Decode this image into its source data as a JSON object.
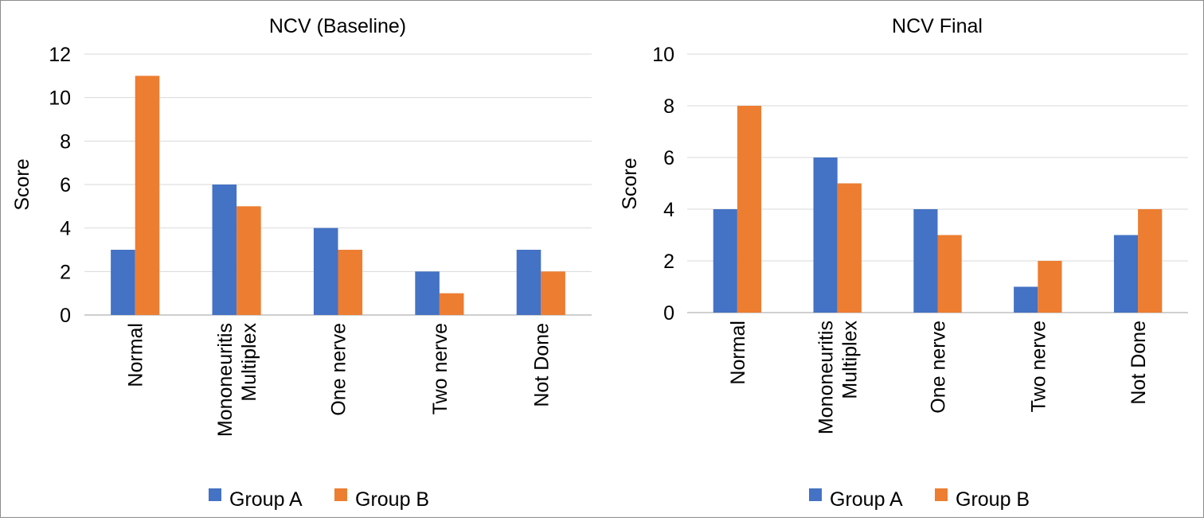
{
  "chart_data": [
    {
      "type": "bar",
      "title": "NCV (Baseline)",
      "xlabel": "",
      "ylabel": "Score",
      "ylim": [
        0,
        12
      ],
      "yticks": [
        0,
        2,
        4,
        6,
        8,
        10,
        12
      ],
      "grid": true,
      "legend": "bottom",
      "categories": [
        [
          "Normal"
        ],
        [
          "Mononeuritis",
          "Multiplex"
        ],
        [
          "One nerve"
        ],
        [
          "Two nerve"
        ],
        [
          "Not Done"
        ]
      ],
      "series": [
        {
          "name": "Group A",
          "color": "#4472c4",
          "values": [
            3,
            6,
            4,
            2,
            3
          ]
        },
        {
          "name": "Group B",
          "color": "#ed7d31",
          "values": [
            11,
            5,
            3,
            1,
            2
          ]
        }
      ]
    },
    {
      "type": "bar",
      "title": "NCV Final",
      "xlabel": "",
      "ylabel": "Score",
      "ylim": [
        0,
        10
      ],
      "yticks": [
        0,
        2,
        4,
        6,
        8,
        10
      ],
      "grid": true,
      "legend": "bottom",
      "categories": [
        [
          "Normal"
        ],
        [
          "Mononeuritis",
          "Multiplex"
        ],
        [
          "One nerve"
        ],
        [
          "Two nerve"
        ],
        [
          "Not Done"
        ]
      ],
      "series": [
        {
          "name": "Group A",
          "color": "#4472c4",
          "values": [
            4,
            6,
            4,
            1,
            3
          ]
        },
        {
          "name": "Group B",
          "color": "#ed7d31",
          "values": [
            8,
            5,
            3,
            2,
            4
          ]
        }
      ]
    }
  ]
}
